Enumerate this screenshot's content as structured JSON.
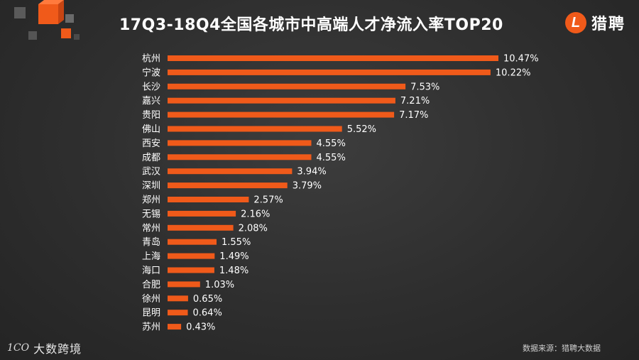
{
  "header": {
    "title": "17Q3-18Q4全国各城市中高端人才净流入率TOP20",
    "brand_badge": "L",
    "brand_name": "猎聘"
  },
  "footer": {
    "logo_mark": "1CO",
    "logo_text": "大数跨境",
    "source": "数据来源：猎聘大数据"
  },
  "colors": {
    "bar": "#f05a1a",
    "accent": "#f05a1a",
    "text": "#ffffff"
  },
  "chart_data": {
    "type": "bar",
    "orientation": "horizontal",
    "title": "17Q3-18Q4全国各城市中高端人才净流入率TOP20",
    "categories": [
      "杭州",
      "宁波",
      "长沙",
      "嘉兴",
      "贵阳",
      "佛山",
      "西安",
      "成都",
      "武汉",
      "深圳",
      "郑州",
      "无锡",
      "常州",
      "青岛",
      "上海",
      "海口",
      "合肥",
      "徐州",
      "昆明",
      "苏州"
    ],
    "values": [
      10.47,
      10.22,
      7.53,
      7.21,
      7.17,
      5.52,
      4.55,
      4.55,
      3.94,
      3.79,
      2.57,
      2.16,
      2.08,
      1.55,
      1.49,
      1.48,
      1.03,
      0.65,
      0.64,
      0.43
    ],
    "labels": [
      "10.47%",
      "10.22%",
      "7.53%",
      "7.21%",
      "7.17%",
      "5.52%",
      "4.55%",
      "4.55%",
      "3.94%",
      "3.79%",
      "2.57%",
      "2.16%",
      "2.08%",
      "1.55%",
      "1.49%",
      "1.48%",
      "1.03%",
      "0.65%",
      "0.64%",
      "0.43%"
    ],
    "unit": "%",
    "xlim": [
      0,
      10.47
    ],
    "grid": false,
    "legend": "none"
  }
}
